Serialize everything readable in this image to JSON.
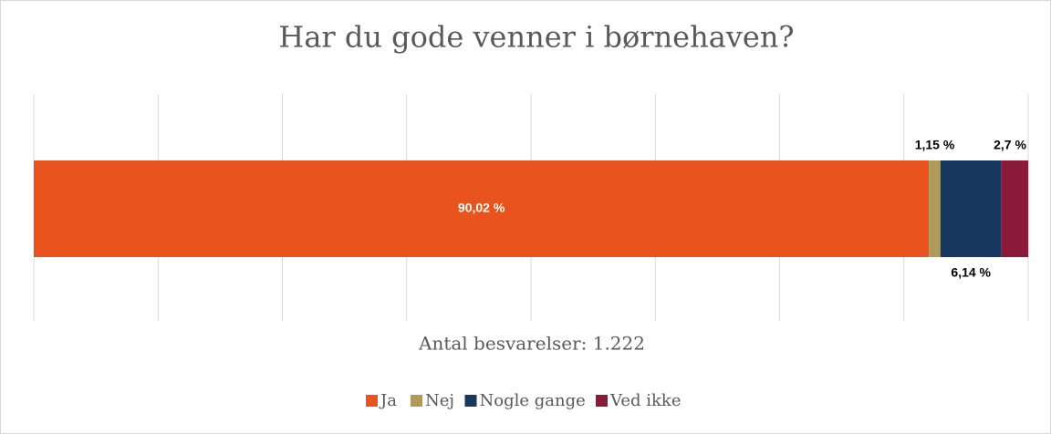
{
  "chart_data": {
    "type": "stacked_bar_horizontal",
    "title": "Har du gode venner i børnehaven?",
    "x_label": "Antal besvarelser: 1.222",
    "xlim": [
      0,
      100
    ],
    "xticks": [
      0,
      12.5,
      25,
      37.5,
      50,
      62.5,
      75,
      87.5,
      100
    ],
    "grid": true,
    "legend": "bottom",
    "series": [
      {
        "name": "Ja",
        "color": "#e8531e",
        "values": [
          90.02
        ],
        "value_labels": [
          "90,02 %"
        ]
      },
      {
        "name": "Nej",
        "color": "#b09a5b",
        "values": [
          1.15
        ],
        "value_labels": [
          "1,15 %"
        ]
      },
      {
        "name": "Nogle gange",
        "color": "#17375e",
        "values": [
          6.14
        ],
        "value_labels": [
          "6,14 %"
        ]
      },
      {
        "name": "Ved ikke",
        "color": "#8b1a3a",
        "values": [
          2.7
        ],
        "value_labels": [
          "2,7 %"
        ]
      }
    ]
  }
}
